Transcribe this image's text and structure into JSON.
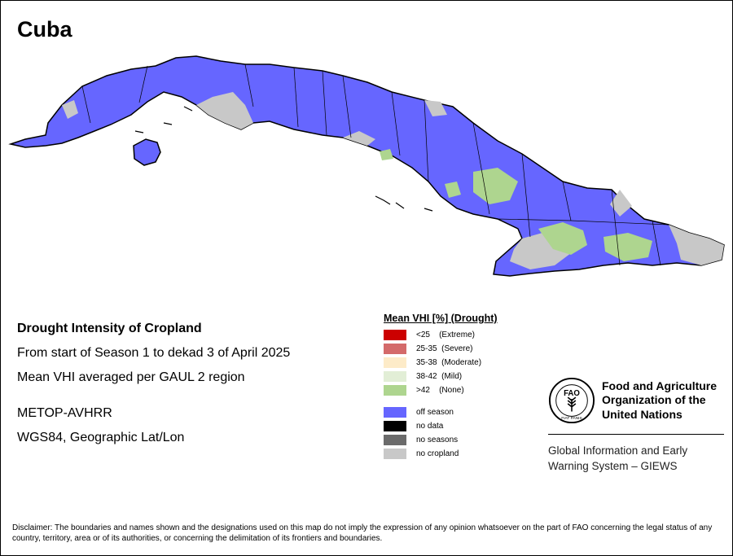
{
  "title": "Cuba",
  "info": {
    "line1": "Drought Intensity of Cropland",
    "line2": "From start of Season 1 to dekad 3 of April 2025",
    "line3": "Mean VHI averaged per GAUL 2 region",
    "line4": "METOP-AVHRR",
    "line5": "WGS84, Geographic Lat/Lon"
  },
  "legend": {
    "title": "Mean VHI [%] (Drought)",
    "classes": [
      {
        "label": "<25    (Extreme)",
        "color": "#cc0000"
      },
      {
        "label": "25-35  (Severe)",
        "color": "#d46a6a"
      },
      {
        "label": "35-38  (Moderate)",
        "color": "#fdebc8"
      },
      {
        "label": "38-42  (Mild)",
        "color": "#e2eed6"
      },
      {
        "label": ">42    (None)",
        "color": "#aed58f"
      }
    ],
    "other": [
      {
        "label": "off season",
        "color": "#6666ff"
      },
      {
        "label": "no data",
        "color": "#000000"
      },
      {
        "label": "no seasons",
        "color": "#6b6b6b"
      },
      {
        "label": "no cropland",
        "color": "#c8c8c8"
      }
    ]
  },
  "fao": {
    "logo_text": "FAO",
    "logo_motto": "FIAT PANIS",
    "name_lines": [
      "Food and Agriculture",
      "Organization of the",
      "United Nations"
    ],
    "giews_lines": [
      "Global Information and Early",
      "Warning System – GIEWS"
    ]
  },
  "disclaimer": "Disclaimer: The boundaries and names shown and the designations used on this map do not imply the expression of any opinion whatsoever on the part of FAO concerning the legal status of any country, territory, area or of its authorities, or concerning the delimitation of its frontiers and boundaries.",
  "map_colors": {
    "off_season": "#6666ff",
    "none": "#aed58f",
    "no_cropland": "#c8c8c8",
    "border": "#000000"
  }
}
